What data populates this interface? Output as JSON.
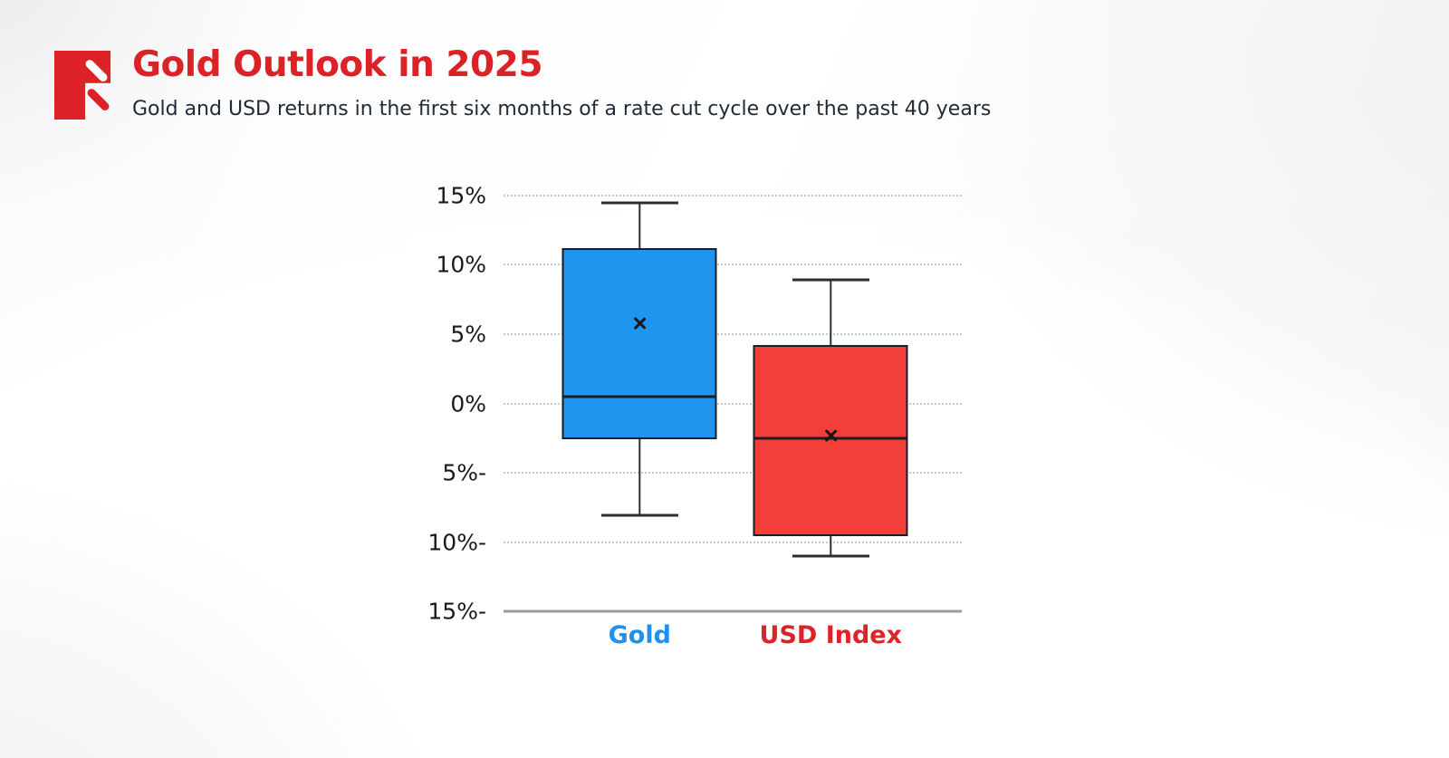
{
  "header": {
    "title": "Gold Outlook in 2025",
    "subtitle": "Gold and USD returns in the first six months of a rate cut cycle over the past 40 years",
    "logo": "red-page-with-slash-logo"
  },
  "colors": {
    "title_red": "#DC2127",
    "subtitle_text": "#212B36",
    "tick_text": "#1A1A1A",
    "grid_line": "#C9C9CB",
    "axis_line": "#9B9B9B",
    "box_border": "#1B1F23",
    "gold_fill": "#1E96F0",
    "gold_label": "#1E90F4",
    "usd_fill": "#F43E3A",
    "usd_label": "#DF2128"
  },
  "chart_data": {
    "type": "boxplot",
    "title": "Gold Outlook in 2025",
    "subtitle": "Gold and USD returns in the first six months of a rate cut cycle over the past 40 years",
    "categories": [
      "Gold",
      "USD Index"
    ],
    "unit": "%",
    "ylim": [
      -15,
      15
    ],
    "yticks": [
      {
        "value": 15,
        "label": "15%"
      },
      {
        "value": 10,
        "label": "10%"
      },
      {
        "value": 5,
        "label": "5%"
      },
      {
        "value": 0,
        "label": "0%"
      },
      {
        "value": -5,
        "label": "5%-"
      },
      {
        "value": -10,
        "label": "10%-"
      },
      {
        "value": -15,
        "label": "15%-"
      }
    ],
    "series": [
      {
        "name": "Gold",
        "fill": "#1E96F0",
        "label_color": "#1E90F4",
        "min": -8.1,
        "q1": -2.6,
        "median": 0.5,
        "q3": 11.2,
        "max": 14.5,
        "mean": 5.8
      },
      {
        "name": "USD Index",
        "fill": "#F43E3A",
        "label_color": "#DF2128",
        "min": -11.0,
        "q1": -9.6,
        "median": -2.5,
        "q3": 4.2,
        "max": 8.9,
        "mean": -2.3
      }
    ],
    "grid": "horizontal-dotted",
    "legend": "none",
    "layout": {
      "centers_pct": [
        29.7,
        71.4
      ],
      "box_width_pct": 33.8,
      "cap_width_pct": 16.8
    }
  }
}
